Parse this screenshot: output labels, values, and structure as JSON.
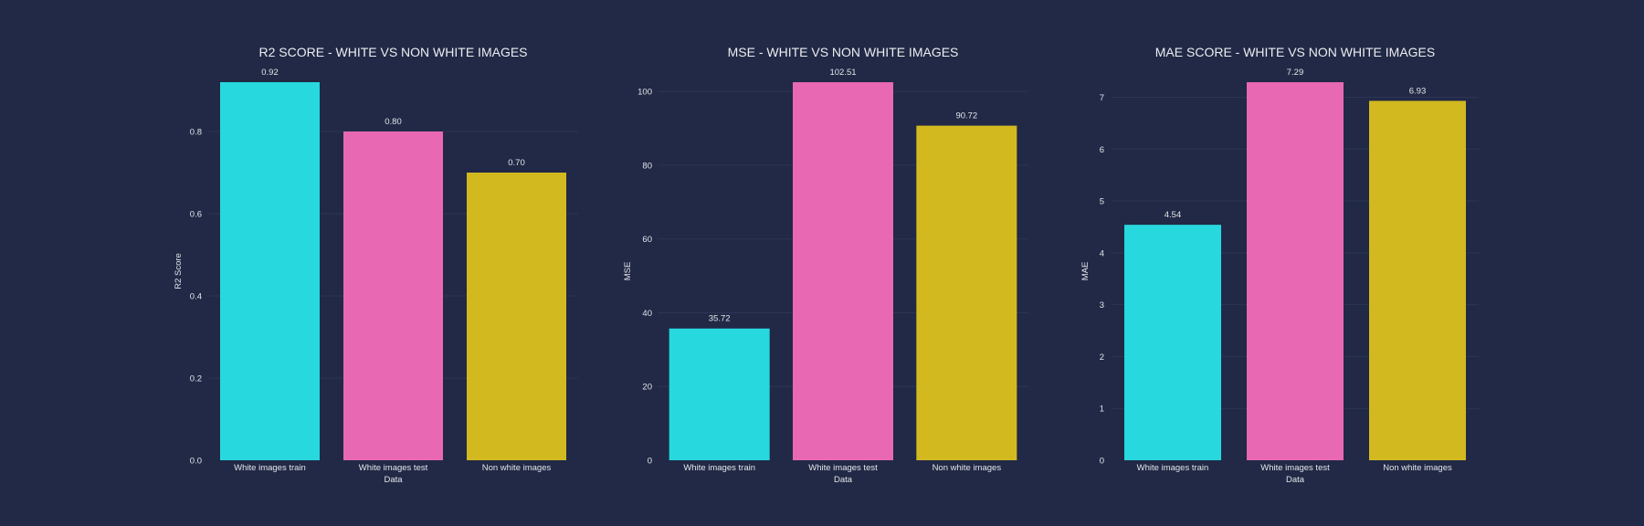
{
  "chart_data": [
    {
      "type": "bar",
      "title": "R2 SCORE - WHITE VS NON WHITE IMAGES",
      "xlabel": "Data",
      "ylabel": "R2 Score",
      "categories": [
        "White images train",
        "White images test",
        "Non white images"
      ],
      "values": [
        0.92,
        0.8,
        0.7
      ],
      "value_labels": [
        "0.92",
        "0.80",
        "0.70"
      ],
      "colors": [
        "#27d9df",
        "#e968b4",
        "#d3b920"
      ],
      "yticks": [
        0.0,
        0.2,
        0.4,
        0.6,
        0.8
      ],
      "ytick_labels": [
        "0.0",
        "0.2",
        "0.4",
        "0.6",
        "0.8"
      ],
      "ylim": [
        0,
        0.92
      ],
      "grid": true,
      "legend": false
    },
    {
      "type": "bar",
      "title": "MSE - WHITE VS NON WHITE IMAGES",
      "xlabel": "Data",
      "ylabel": "MSE",
      "categories": [
        "White images train",
        "White images test",
        "Non white images"
      ],
      "values": [
        35.72,
        102.51,
        90.72
      ],
      "value_labels": [
        "35.72",
        "102.51",
        "90.72"
      ],
      "colors": [
        "#27d9df",
        "#e968b4",
        "#d3b920"
      ],
      "yticks": [
        0,
        20,
        40,
        60,
        80,
        100
      ],
      "ytick_labels": [
        "0",
        "20",
        "40",
        "60",
        "80",
        "100"
      ],
      "ylim": [
        0,
        102.51
      ],
      "grid": true,
      "legend": false
    },
    {
      "type": "bar",
      "title": "MAE SCORE - WHITE VS NON WHITE IMAGES",
      "xlabel": "Data",
      "ylabel": "MAE",
      "categories": [
        "White images train",
        "White images test",
        "Non white images"
      ],
      "values": [
        4.54,
        7.29,
        6.93
      ],
      "value_labels": [
        "4.54",
        "7.29",
        "6.93"
      ],
      "colors": [
        "#27d9df",
        "#e968b4",
        "#d3b920"
      ],
      "yticks": [
        0,
        1,
        2,
        3,
        4,
        5,
        6,
        7
      ],
      "ytick_labels": [
        "0",
        "1",
        "2",
        "3",
        "4",
        "5",
        "6",
        "7"
      ],
      "ylim": [
        0,
        7.29
      ],
      "grid": true,
      "legend": false
    }
  ]
}
